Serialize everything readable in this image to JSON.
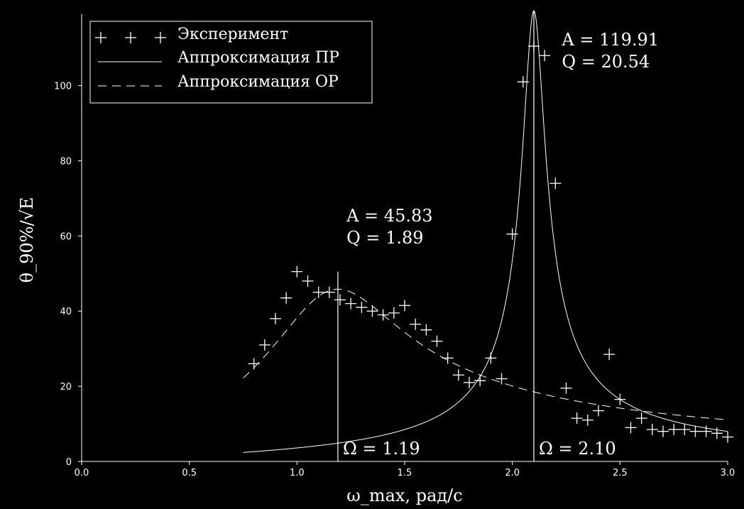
{
  "chart_data": {
    "type": "scatter",
    "xlabel": "ω_max, рад/с",
    "ylabel": "θ_90%/√E",
    "xlim": [
      0.0,
      3.0
    ],
    "ylim": [
      0,
      119
    ],
    "xticks": [
      "0.0",
      "0.5",
      "1.0",
      "1.5",
      "2.0",
      "2.5",
      "3.0"
    ],
    "yticks": [
      "0",
      "20",
      "40",
      "60",
      "80",
      "100"
    ],
    "grid": false,
    "legend_position": "top-left",
    "series": [
      {
        "name": "Эксперимент",
        "style": "plus-markers",
        "x": [
          0.8,
          0.85,
          0.9,
          0.95,
          1.0,
          1.05,
          1.1,
          1.15,
          1.2,
          1.25,
          1.3,
          1.35,
          1.4,
          1.45,
          1.5,
          1.55,
          1.6,
          1.65,
          1.7,
          1.75,
          1.8,
          1.85,
          1.9,
          1.95,
          2.0,
          2.05,
          2.1,
          2.15,
          2.2,
          2.25,
          2.3,
          2.35,
          2.4,
          2.45,
          2.5,
          2.55,
          2.6,
          2.65,
          2.7,
          2.75,
          2.8,
          2.85,
          2.9,
          2.95,
          3.0
        ],
        "y": [
          26.0,
          31.0,
          38.0,
          43.5,
          50.5,
          48.0,
          45.0,
          45.0,
          43.0,
          42.0,
          41.0,
          40.0,
          39.0,
          39.5,
          41.5,
          36.5,
          35.0,
          32.0,
          27.5,
          23.0,
          21.0,
          21.5,
          27.5,
          22.0,
          60.5,
          101.0,
          110.5,
          108.0,
          74.0,
          19.5,
          11.5,
          11.0,
          13.5,
          28.5,
          16.5,
          9.0,
          11.5,
          8.5,
          8.0,
          8.5,
          8.5,
          8.0,
          8.0,
          7.5,
          6.5
        ]
      },
      {
        "name": "Аппроксимация ПР",
        "style": "solid",
        "model": "resonance",
        "A": 119.91,
        "Q": 20.54,
        "Omega": 2.1,
        "x_range": [
          0.75,
          3.0
        ]
      },
      {
        "name": "Аппроксимация ОР",
        "style": "dashed",
        "model": "resonance",
        "A": 45.83,
        "Q": 1.89,
        "Omega": 1.19,
        "x_range": [
          0.75,
          3.0
        ]
      }
    ],
    "annotations": [
      {
        "line1": "A = 45.83",
        "line2": "Q = 1.89",
        "omega_label": "Ω = 1.19",
        "omega": 1.19,
        "line_top": 50.5
      },
      {
        "line1": "A = 119.91",
        "line2": "Q = 20.54",
        "omega_label": "Ω = 2.10",
        "omega": 2.1,
        "line_top": 120
      }
    ]
  }
}
